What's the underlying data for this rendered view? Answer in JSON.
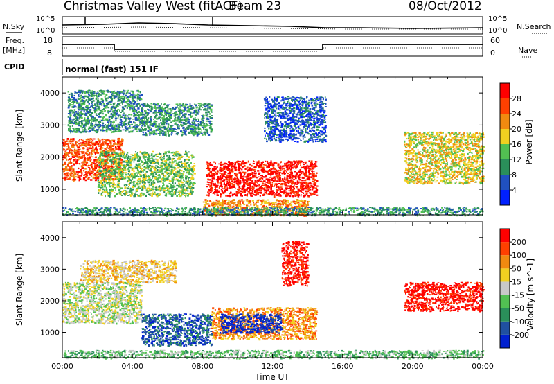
{
  "header": {
    "station": "Christmas Valley West (fitACF)",
    "beam": "Beam 23",
    "date": "08/Oct/2012"
  },
  "noise_panel": {
    "left_label": "N.Sky",
    "right_label": "N.Search",
    "ticks_left": [
      "10^5",
      "10^0"
    ],
    "ticks_right": [
      "10^5",
      "10^0"
    ]
  },
  "freq_panel": {
    "left_label_1": "Freq.",
    "left_label_2": "[MHz]",
    "ticks_left": [
      "18",
      "8"
    ],
    "right_label": "Nave",
    "ticks_right": [
      "60",
      "0"
    ]
  },
  "cpid": {
    "label": "CPID",
    "mode": "normal (fast) 151 IF"
  },
  "chart_data": [
    {
      "type": "heatmap",
      "name": "power",
      "ylabel": "Slant Range [km]",
      "yticks": [
        "1000",
        "2000",
        "3000",
        "4000"
      ],
      "ylim": [
        200,
        4500
      ],
      "xlim": [
        0,
        24
      ],
      "colorbar": {
        "label": "Power [dB]",
        "ticks": [
          "4",
          "8",
          "12",
          "16",
          "20",
          "24",
          "28"
        ],
        "colors": [
          "#0020ff",
          "#2050c0",
          "#2a8f5a",
          "#52c052",
          "#f0d020",
          "#f08a10",
          "#ff4000",
          "#ff0000"
        ]
      },
      "regions": [
        {
          "x0": 0.0,
          "x1": 3.4,
          "y0": 1300,
          "y1": 2600,
          "level": 6
        },
        {
          "x0": 0.3,
          "x1": 4.5,
          "y0": 2800,
          "y1": 4100,
          "level": 2
        },
        {
          "x0": 2.0,
          "x1": 7.5,
          "y0": 800,
          "y1": 2200,
          "level": 3
        },
        {
          "x0": 4.5,
          "x1": 8.5,
          "y0": 2700,
          "y1": 3700,
          "level": 2
        },
        {
          "x0": 8.2,
          "x1": 14.5,
          "y0": 800,
          "y1": 1900,
          "level": 7
        },
        {
          "x0": 11.5,
          "x1": 15.0,
          "y0": 2500,
          "y1": 3900,
          "level": 1
        },
        {
          "x0": 19.5,
          "x1": 24.0,
          "y0": 1200,
          "y1": 2800,
          "level": 4
        },
        {
          "x0": 8.0,
          "x1": 14.0,
          "y0": 200,
          "y1": 700,
          "level": 5
        },
        {
          "x0": 0.0,
          "x1": 24.0,
          "y0": 200,
          "y1": 450,
          "level": 2
        }
      ]
    },
    {
      "type": "heatmap",
      "name": "velocity",
      "ylabel": "Slant Range [km]",
      "xlabel": "Time UT",
      "xticks": [
        "00:00",
        "04:00",
        "08:00",
        "12:00",
        "16:00",
        "20:00",
        "00:00"
      ],
      "yticks": [
        "1000",
        "2000",
        "3000",
        "4000"
      ],
      "ylim": [
        200,
        4500
      ],
      "xlim": [
        0,
        24
      ],
      "colorbar": {
        "label": "Velocity [m s^-1]",
        "ticks": [
          "200",
          "100",
          "50",
          "15",
          "-15",
          "-50",
          "-100",
          "-200"
        ],
        "colors": [
          "#0020d0",
          "#2050a0",
          "#2a8f5a",
          "#52c052",
          "#c8c8c8",
          "#f0d020",
          "#f08a10",
          "#ff4000",
          "#ff0000"
        ]
      },
      "regions": [
        {
          "x0": 0.0,
          "x1": 4.5,
          "y0": 1300,
          "y1": 2600,
          "level": 4
        },
        {
          "x0": 1.0,
          "x1": 6.5,
          "y0": 2600,
          "y1": 3300,
          "level": 5
        },
        {
          "x0": 4.5,
          "x1": 8.5,
          "y0": 600,
          "y1": 1600,
          "level": 1
        },
        {
          "x0": 8.5,
          "x1": 14.5,
          "y0": 800,
          "y1": 1800,
          "level": 6
        },
        {
          "x0": 9.0,
          "x1": 12.5,
          "y0": 1000,
          "y1": 1600,
          "level": 0
        },
        {
          "x0": 12.5,
          "x1": 14.0,
          "y0": 2500,
          "y1": 3900,
          "level": 8
        },
        {
          "x0": 19.5,
          "x1": 24.0,
          "y0": 1700,
          "y1": 2600,
          "level": 8
        },
        {
          "x0": 0.0,
          "x1": 24.0,
          "y0": 200,
          "y1": 450,
          "level": 3
        }
      ]
    }
  ]
}
